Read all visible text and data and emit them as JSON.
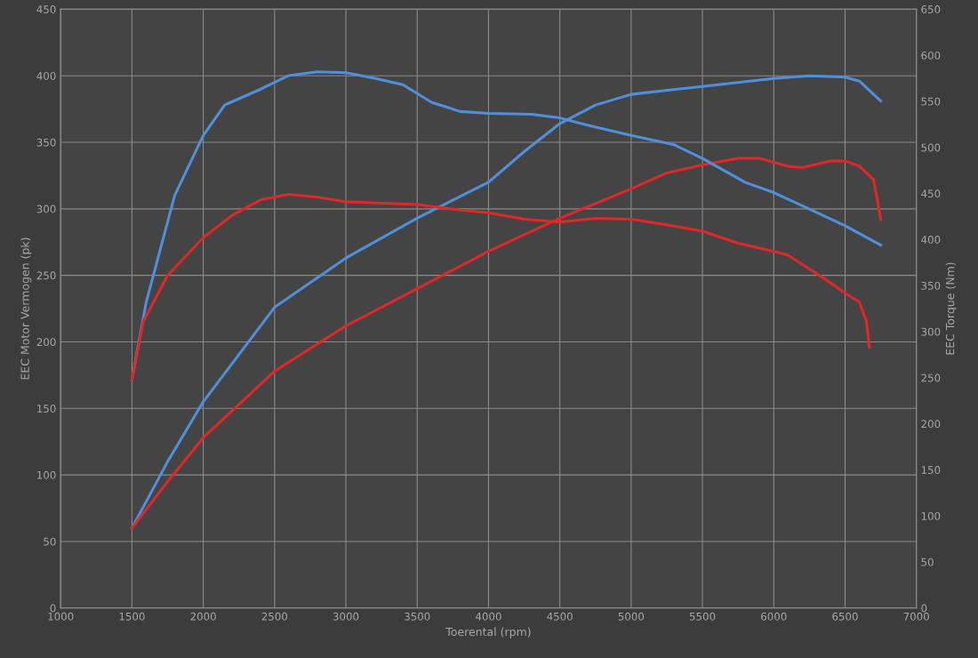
{
  "chart_data": {
    "type": "line",
    "xlabel": "Toerental (rpm)",
    "ylabel": "EEC Motor Vermogen (pk)",
    "y2label": "EEC Torque (Nm)",
    "xlim": [
      1000,
      7000
    ],
    "xticks": [
      1000,
      1500,
      2000,
      2500,
      3000,
      3500,
      4000,
      4500,
      5000,
      5500,
      6000,
      6500,
      7000
    ],
    "ylim": [
      0,
      450
    ],
    "yticks": [
      0,
      50,
      100,
      150,
      200,
      250,
      300,
      350,
      400,
      450
    ],
    "y2lim": [
      0,
      650
    ],
    "y2ticks": [
      0,
      50,
      100,
      150,
      200,
      250,
      300,
      350,
      400,
      450,
      500,
      550,
      600,
      650
    ],
    "grid": true,
    "legend": false,
    "marker": "none",
    "line_style": "solid",
    "series": [
      {
        "color": "#4f8fdc",
        "x": [
          1500,
          1750,
          2000,
          2500,
          3000,
          3500,
          4000,
          4250,
          4500,
          4750,
          5000,
          5500,
          6000,
          6250,
          6500,
          6600,
          6750
        ],
        "values": [
          60,
          110,
          155,
          226,
          263,
          293,
          320,
          343,
          364,
          378,
          386,
          392,
          398,
          400,
          399,
          396,
          381
        ]
      },
      {
        "color": "#e02828",
        "x": [
          1500,
          1750,
          2000,
          2500,
          3000,
          3500,
          4000,
          4500,
          5000,
          5250,
          5500,
          5750,
          5900,
          6100,
          6200,
          6400,
          6500,
          6600,
          6700,
          6750
        ],
        "values": [
          60,
          95,
          128,
          178,
          212,
          240,
          268,
          293,
          315,
          327,
          333,
          338,
          338,
          332,
          331,
          336,
          336,
          332,
          322,
          292
        ]
      },
      {
        "color": "#4f8fdc",
        "axis": "y2",
        "x": [
          1500,
          1600,
          1800,
          2000,
          2150,
          2400,
          2600,
          2800,
          3000,
          3200,
          3400,
          3600,
          3800,
          4000,
          4300,
          4500,
          4700,
          5000,
          5300,
          5500,
          5800,
          6000,
          6250,
          6500,
          6750
        ],
        "values": [
          248,
          332,
          448,
          513,
          546,
          563,
          578,
          582,
          581,
          575,
          568,
          549,
          539,
          537,
          536,
          532,
          524,
          513,
          503,
          488,
          462,
          451,
          433,
          415,
          394
        ]
      },
      {
        "color": "#e02828",
        "axis": "y2",
        "x": [
          1500,
          1580,
          1750,
          2000,
          2200,
          2400,
          2600,
          2800,
          3000,
          3500,
          3800,
          4000,
          4250,
          4500,
          4750,
          5000,
          5250,
          5500,
          5750,
          6000,
          6100,
          6250,
          6350,
          6500,
          6600,
          6650,
          6670
        ],
        "values": [
          248,
          311,
          361,
          402,
          426,
          443,
          449,
          446,
          441,
          438,
          432,
          429,
          422,
          419,
          423,
          422,
          416,
          409,
          396,
          387,
          383,
          368,
          358,
          342,
          332,
          311,
          283
        ]
      }
    ]
  }
}
